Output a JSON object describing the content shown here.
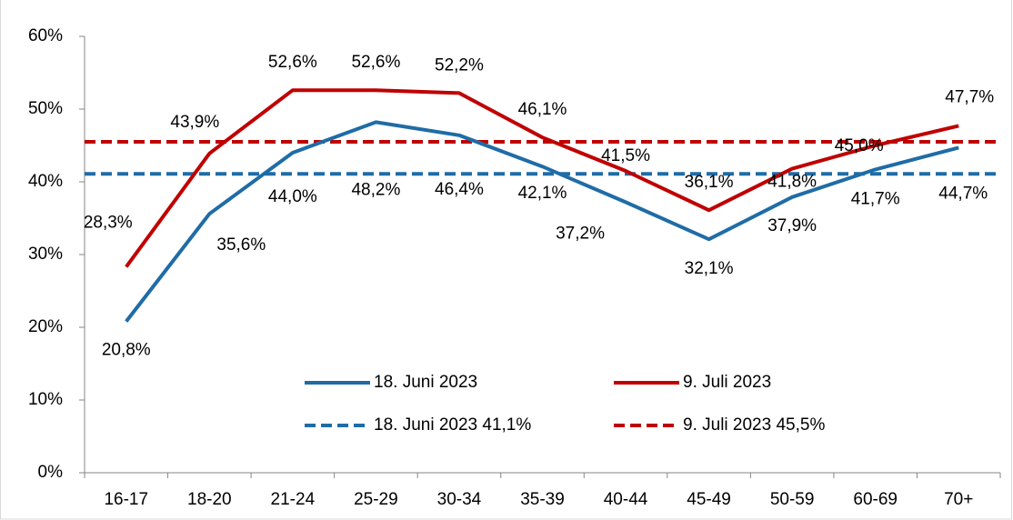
{
  "chart_data": {
    "type": "line",
    "categories": [
      "16-17",
      "18-20",
      "21-24",
      "25-29",
      "30-34",
      "35-39",
      "40-44",
      "45-49",
      "50-59",
      "60-69",
      "70+"
    ],
    "series": [
      {
        "name": "18. Juni 2023",
        "color": "#1f6ca6",
        "values": [
          20.8,
          35.6,
          44.0,
          48.2,
          46.4,
          42.1,
          37.2,
          32.1,
          37.9,
          41.7,
          44.7
        ],
        "value_labels": [
          "20,8%",
          "35,6%",
          "44,0%",
          "48,2%",
          "46,4%",
          "42,1%",
          "37,2%",
          "32,1%",
          "37,9%",
          "41,7%",
          "44,7%"
        ]
      },
      {
        "name": "9. Juli 2023",
        "color": "#c00000",
        "values": [
          28.3,
          43.9,
          52.6,
          52.6,
          52.2,
          46.1,
          41.5,
          36.1,
          41.8,
          45.0,
          47.7
        ],
        "value_labels": [
          "28,3%",
          "43,9%",
          "52,6%",
          "52,6%",
          "52,2%",
          "46,1%",
          "41,5%",
          "36,1%",
          "41,8%",
          "45,0%",
          "47,7%"
        ]
      }
    ],
    "reference_lines": [
      {
        "name": "18. Juni 2023 41,1%",
        "color": "#1f6ca6",
        "value": 41.1,
        "dashed": true
      },
      {
        "name": "9. Juli 2023 45,5%",
        "color": "#c00000",
        "value": 45.5,
        "dashed": true
      }
    ],
    "ylim": [
      0,
      60
    ],
    "yticks": [
      {
        "value": 0,
        "label": "0%"
      },
      {
        "value": 10,
        "label": "10%"
      },
      {
        "value": 20,
        "label": "20%"
      },
      {
        "value": 30,
        "label": "30%"
      },
      {
        "value": 40,
        "label": "40%"
      },
      {
        "value": 50,
        "label": "50%"
      },
      {
        "value": 60,
        "label": "60%"
      }
    ],
    "legend": "inside-bottom"
  }
}
